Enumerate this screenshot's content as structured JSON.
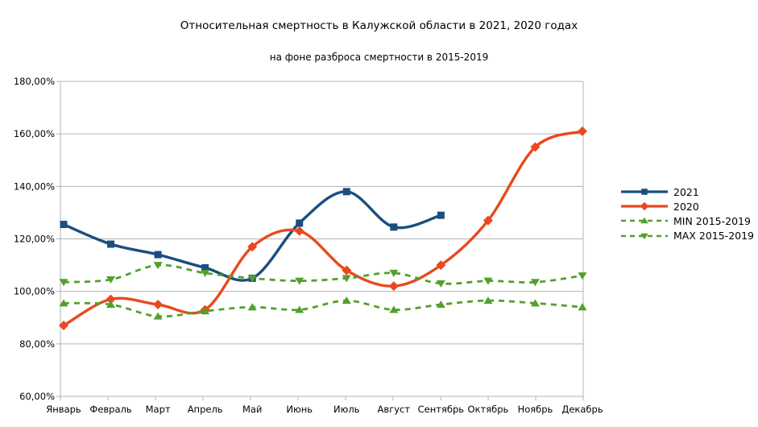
{
  "chart_data": {
    "type": "line",
    "title": "Относительная смертность в Калужской области в 2021, 2020 годах",
    "subtitle": "на фоне разброса смертности в 2015-2019",
    "categories": [
      "Январь",
      "Февраль",
      "Март",
      "Апрель",
      "Май",
      "Июнь",
      "Июль",
      "Август",
      "Сентябрь",
      "Октябрь",
      "Ноябрь",
      "Декабрь"
    ],
    "xlabel": "",
    "ylabel": "",
    "ylim": [
      60,
      180
    ],
    "y_step": 20,
    "y_tick_labels": [
      "180,00%",
      "160,00%",
      "140,00%",
      "120,00%",
      "100,00%",
      "80,00%",
      "60,00%"
    ],
    "grid": true,
    "smooth_lines": true,
    "legend_position": "right",
    "series": [
      {
        "name": "2021",
        "color": "#1B4E7F",
        "marker": "square",
        "line_style": "solid",
        "values": [
          125.5,
          118,
          114,
          109,
          105,
          126,
          138,
          124.5,
          129,
          null,
          null,
          null
        ]
      },
      {
        "name": "2020",
        "color": "#E8491F",
        "marker": "diamond",
        "line_style": "solid",
        "values": [
          87,
          97,
          95,
          93,
          117,
          123,
          108,
          102,
          110,
          127,
          155,
          161
        ]
      },
      {
        "name": "MIN 2015-2019",
        "color": "#52A02C",
        "marker": "triangle-up",
        "line_style": "dashed",
        "values": [
          95.5,
          95,
          90.5,
          92.5,
          94,
          93,
          96.5,
          93,
          95,
          96.5,
          95.5,
          94
        ]
      },
      {
        "name": "MAX 2015-2019",
        "color": "#52A02C",
        "marker": "triangle-down",
        "line_style": "dashed",
        "values": [
          103.5,
          104.5,
          110,
          107,
          105,
          104,
          105,
          107,
          103,
          104,
          103.5,
          106
        ]
      }
    ],
    "colors": {
      "grid": "#B3B3B3",
      "axis": "#B3B3B3",
      "text": "#000000",
      "background": "#FFFFFF"
    }
  }
}
